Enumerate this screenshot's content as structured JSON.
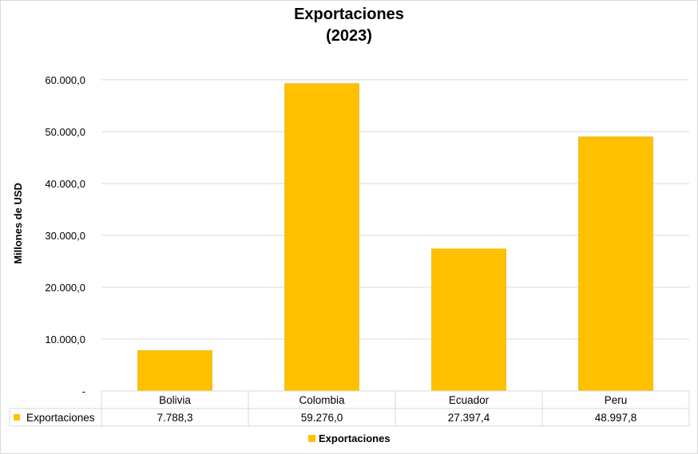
{
  "chart_data": {
    "type": "bar",
    "title": "Exportaciones",
    "subtitle": "(2023)",
    "ylabel": "Millones de USD",
    "xlabel": "",
    "categories": [
      "Bolivia",
      "Colombia",
      "Ecuador",
      "Peru"
    ],
    "series": [
      {
        "name": "Exportaciones",
        "values": [
          7788.3,
          59276.0,
          27397.4,
          48997.8
        ]
      }
    ],
    "value_labels": [
      "7.788,3",
      "59.276,0",
      "27.397,4",
      "48.997,8"
    ],
    "ylim": [
      0,
      60000
    ],
    "yticks": [
      0,
      10000,
      20000,
      30000,
      40000,
      50000,
      60000
    ],
    "ytick_labels": [
      "-",
      "10.000,0",
      "20.000,0",
      "30.000,0",
      "40.000,0",
      "50.000,0",
      "60.000,0"
    ],
    "grid": true,
    "legend": "bottom",
    "data_table": true,
    "colors": {
      "bar": "#FFC000",
      "grid": "#d9d9d9",
      "text": "#000000"
    }
  }
}
